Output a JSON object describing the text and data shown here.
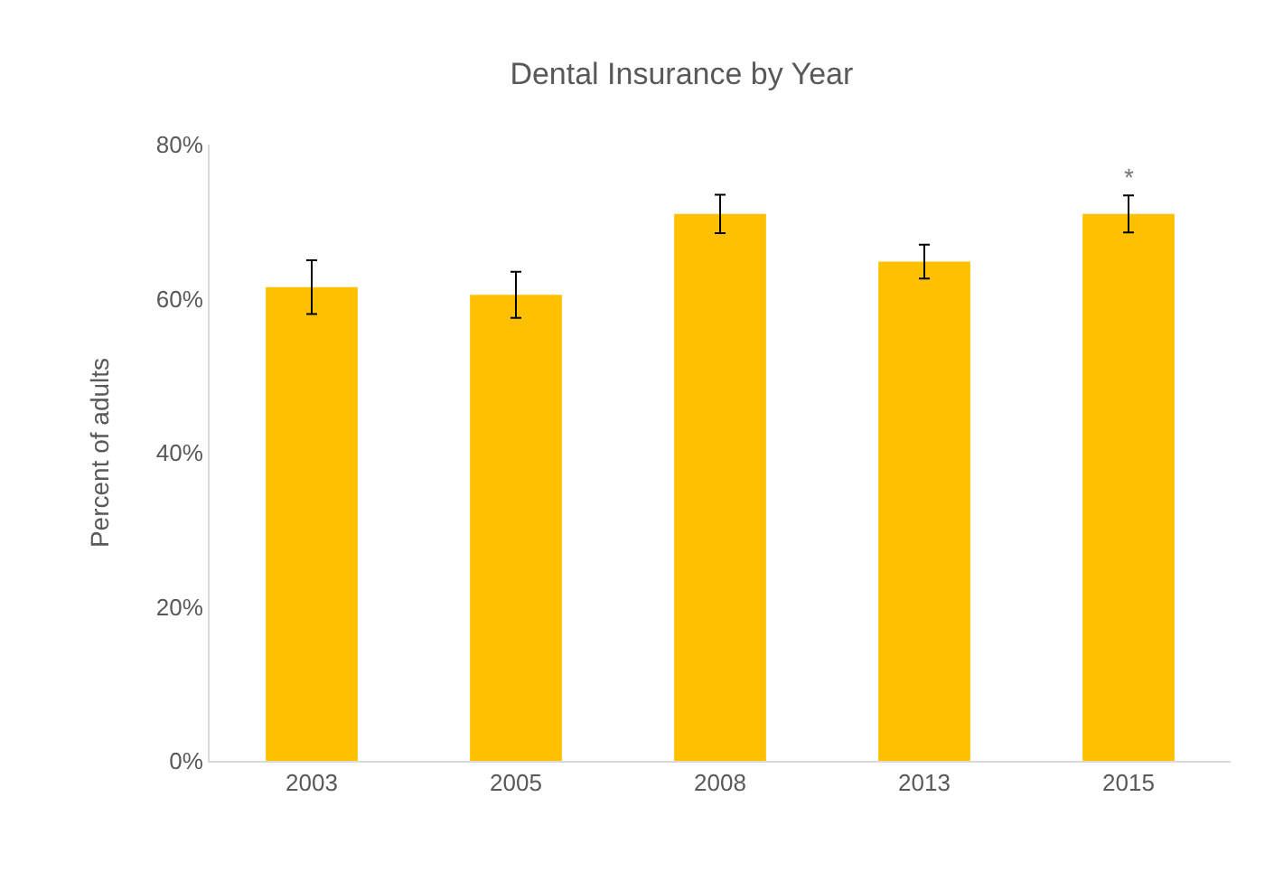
{
  "chart_data": {
    "type": "bar",
    "title": "Dental Insurance by Year",
    "ylabel": "Percent of adults",
    "categories": [
      "2003",
      "2005",
      "2008",
      "2013",
      "2015"
    ],
    "values": [
      61.5,
      60.5,
      71,
      64.8,
      71
    ],
    "errors": [
      3.5,
      3,
      2.5,
      2.2,
      2.4
    ],
    "color": "#ffc000",
    "ylim": [
      0,
      80
    ],
    "yticks": [
      {
        "value": 0,
        "label": "0%"
      },
      {
        "value": 20,
        "label": "20%"
      },
      {
        "value": 40,
        "label": "40%"
      },
      {
        "value": 60,
        "label": "60%"
      },
      {
        "value": 80,
        "label": "80%"
      }
    ],
    "grid": false,
    "annotations": [
      {
        "text": "*",
        "x": "2015",
        "y": 73.5
      }
    ]
  }
}
